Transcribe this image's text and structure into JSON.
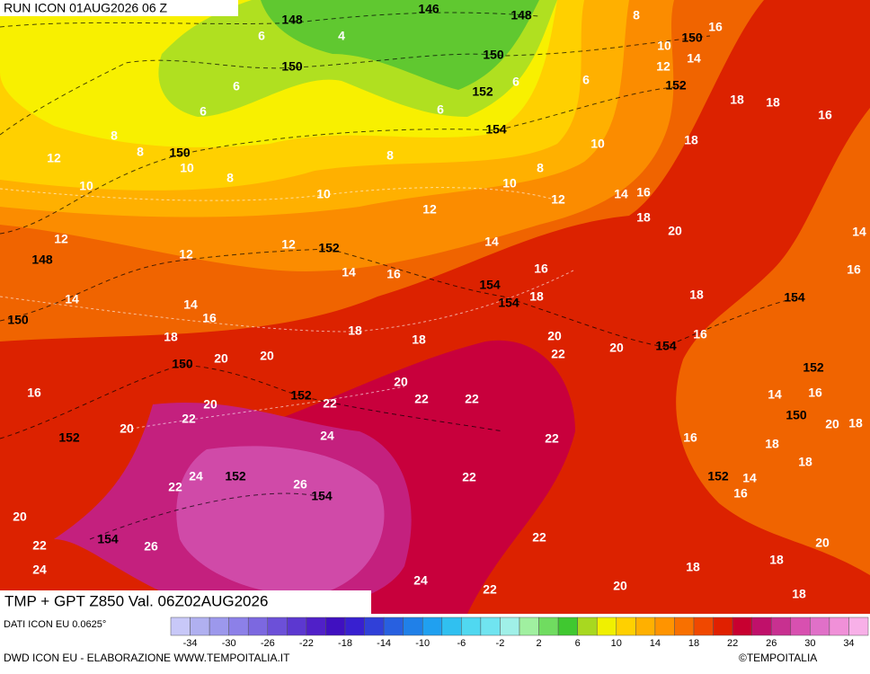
{
  "header": {
    "run": "RUN ICON 01AUG2026 06 Z",
    "title": "TMP + GPT Z850 Val. 06Z02AUG2026"
  },
  "footer": {
    "source": "DATI ICON EU 0.0625°",
    "credit": "DWD ICON EU - ELABORAZIONE WWW.TEMPOITALIA.IT",
    "copyright": "©TEMPOITALIA"
  },
  "colorbar": {
    "colors": [
      "#c8c8f8",
      "#b0b0f0",
      "#9c98ec",
      "#8c80e8",
      "#7c68e0",
      "#6c50d8",
      "#5c38d0",
      "#5020c8",
      "#4010c0",
      "#3820d0",
      "#3040d8",
      "#2860e0",
      "#2080e8",
      "#20a0f0",
      "#30c0f0",
      "#50d8f0",
      "#70e4f0",
      "#a0f0e8",
      "#a0f0a0",
      "#70dc60",
      "#40c830",
      "#a8d820",
      "#f0f000",
      "#ffd000",
      "#ffb000",
      "#ff9400",
      "#f87000",
      "#f04800",
      "#e02000",
      "#c80030",
      "#c0106a",
      "#c83090",
      "#d850b0",
      "#e070c8",
      "#f090d8",
      "#f8b0e8"
    ],
    "ticks": [
      -34,
      -30,
      -26,
      -22,
      -18,
      -14,
      -10,
      -6,
      -2,
      2,
      6,
      10,
      14,
      18,
      22,
      26,
      30,
      34
    ]
  },
  "map": {
    "height_labels": [
      148,
      146,
      148,
      150,
      150,
      150,
      152,
      152,
      154,
      150,
      148,
      152,
      150,
      154,
      154,
      154,
      150,
      154,
      152,
      152,
      150,
      152,
      152,
      154,
      152,
      154
    ],
    "temperature_labels": [
      8,
      16,
      6,
      4,
      10,
      14,
      12,
      6,
      6,
      6,
      6,
      6,
      18,
      18,
      16,
      8,
      8,
      10,
      18,
      12,
      10,
      8,
      8,
      10,
      8,
      10,
      10,
      12,
      14,
      16,
      18,
      20,
      12,
      12,
      12,
      14,
      14,
      12,
      14,
      16,
      16,
      16,
      14,
      14,
      18,
      18,
      16,
      18,
      18,
      18,
      20,
      20,
      16,
      20,
      20,
      22,
      16,
      20,
      22,
      22,
      14,
      16,
      20,
      22,
      22,
      20,
      20,
      18,
      24,
      22,
      16,
      18,
      24,
      22,
      14,
      18,
      22,
      26,
      16,
      20,
      22,
      26,
      22,
      20,
      24,
      18,
      18,
      24,
      22,
      20,
      18
    ]
  }
}
